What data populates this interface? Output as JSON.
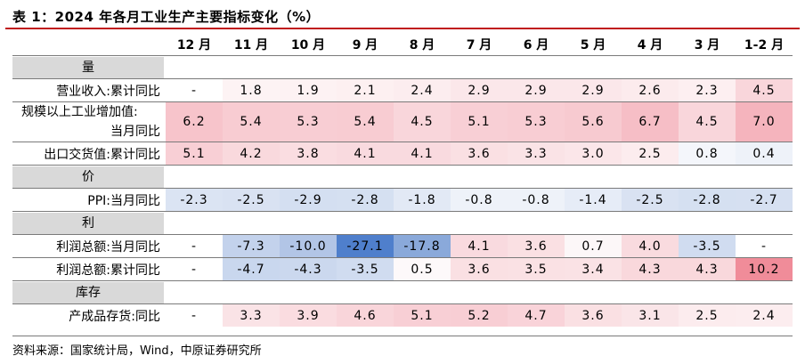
{
  "title": "表 1：2024 年各月工业生产主要指标变化（%）",
  "columns": [
    "12 月",
    "11 月",
    "10 月",
    "9 月",
    "8 月",
    "7 月",
    "6 月",
    "5 月",
    "4 月",
    "3 月",
    "1-2 月"
  ],
  "sections": [
    {
      "category": "量",
      "rows": [
        {
          "label": [
            "营业收入:累计同比"
          ],
          "values": [
            "-",
            "1.8",
            "1.9",
            "2.1",
            "2.4",
            "2.9",
            "2.9",
            "2.9",
            "2.6",
            "2.3",
            "4.5"
          ],
          "colors": [
            "#ffffff",
            "#fdf3f4",
            "#fdf2f3",
            "#fdf0f1",
            "#fcedef",
            "#fbe7ea",
            "#fbe7ea",
            "#fbe7ea",
            "#fcebed",
            "#fdeff1",
            "#f9d6db"
          ]
        },
        {
          "label": [
            "规模以上工业增加值:",
            "当月同比"
          ],
          "values": [
            "6.2",
            "5.4",
            "5.3",
            "5.4",
            "4.5",
            "5.1",
            "5.3",
            "5.6",
            "6.7",
            "4.5",
            "7.0"
          ],
          "colors": [
            "#f7c4cb",
            "#f8ccd2",
            "#f8cdd3",
            "#f8ccd2",
            "#f9d6db",
            "#f8cfd5",
            "#f8cdd3",
            "#f7cad0",
            "#f6bec6",
            "#f9d6db",
            "#f5b4bd"
          ]
        },
        {
          "label": [
            "出口交货值:累计同比"
          ],
          "values": [
            "5.1",
            "4.2",
            "3.8",
            "4.1",
            "4.1",
            "3.6",
            "3.3",
            "3.0",
            "2.5",
            "0.8",
            "0.4"
          ],
          "colors": [
            "#f8cfd5",
            "#f9d9dd",
            "#fadde1",
            "#f9dadf",
            "#f9dadf",
            "#fae0e3",
            "#fae3e6",
            "#fbe6e9",
            "#fcecee",
            "#f4f6fb",
            "#eef2f9"
          ]
        }
      ]
    },
    {
      "category": "价",
      "rows": [
        {
          "label": [
            "PPI:当月同比"
          ],
          "values": [
            "-2.3",
            "-2.5",
            "-2.9",
            "-2.8",
            "-1.8",
            "-0.8",
            "-0.8",
            "-1.4",
            "-2.5",
            "-2.8",
            "-2.7"
          ],
          "colors": [
            "#dbe4f3",
            "#d9e2f2",
            "#d4dff1",
            "#d5e0f1",
            "#e2e9f5",
            "#eef2f9",
            "#eef2f9",
            "#e6ecf7",
            "#d9e2f2",
            "#d5e0f1",
            "#d6e0f1"
          ]
        }
      ]
    },
    {
      "category": "利",
      "rows": [
        {
          "label": [
            "利润总额:当月同比"
          ],
          "values": [
            "-",
            "-7.3",
            "-10.0",
            "-27.1",
            "-17.8",
            "4.1",
            "3.6",
            "0.7",
            "4.0",
            "-3.5",
            "-"
          ],
          "colors": [
            "#ffffff",
            "#c3d2ec",
            "#b2c5e6",
            "#4f7fcc",
            "#8aa9da",
            "#f9dadf",
            "#fae0e3",
            "#fcf7f8",
            "#f9dbdf",
            "#d0dcf0",
            "#ffffff"
          ]
        },
        {
          "label": [
            "利润总额:累计同比"
          ],
          "values": [
            "-",
            "-4.7",
            "-4.3",
            "-3.5",
            "0.5",
            "3.6",
            "3.5",
            "3.4",
            "4.3",
            "4.3",
            "10.2"
          ],
          "colors": [
            "#ffffff",
            "#c9d7ee",
            "#cbd8ee",
            "#d0dcf0",
            "#fdf9fa",
            "#fae0e3",
            "#fae1e4",
            "#fae2e5",
            "#f9d8dc",
            "#f9d8dc",
            "#f08c99"
          ]
        }
      ]
    },
    {
      "category": "库存",
      "rows": [
        {
          "label": [
            "产成品存货:同比"
          ],
          "values": [
            "-",
            "3.3",
            "3.9",
            "4.6",
            "5.1",
            "5.2",
            "4.7",
            "3.6",
            "3.1",
            "2.5",
            "2.4"
          ],
          "colors": [
            "#ffffff",
            "#fae3e6",
            "#fadce0",
            "#f9d5da",
            "#f8cfd5",
            "#f8ced4",
            "#f9d3d9",
            "#fae0e3",
            "#fae5e8",
            "#fcecee",
            "#fcedef"
          ]
        }
      ]
    }
  ],
  "footer": "资料来源：国家统计局，Wind，中原证券研究所"
}
